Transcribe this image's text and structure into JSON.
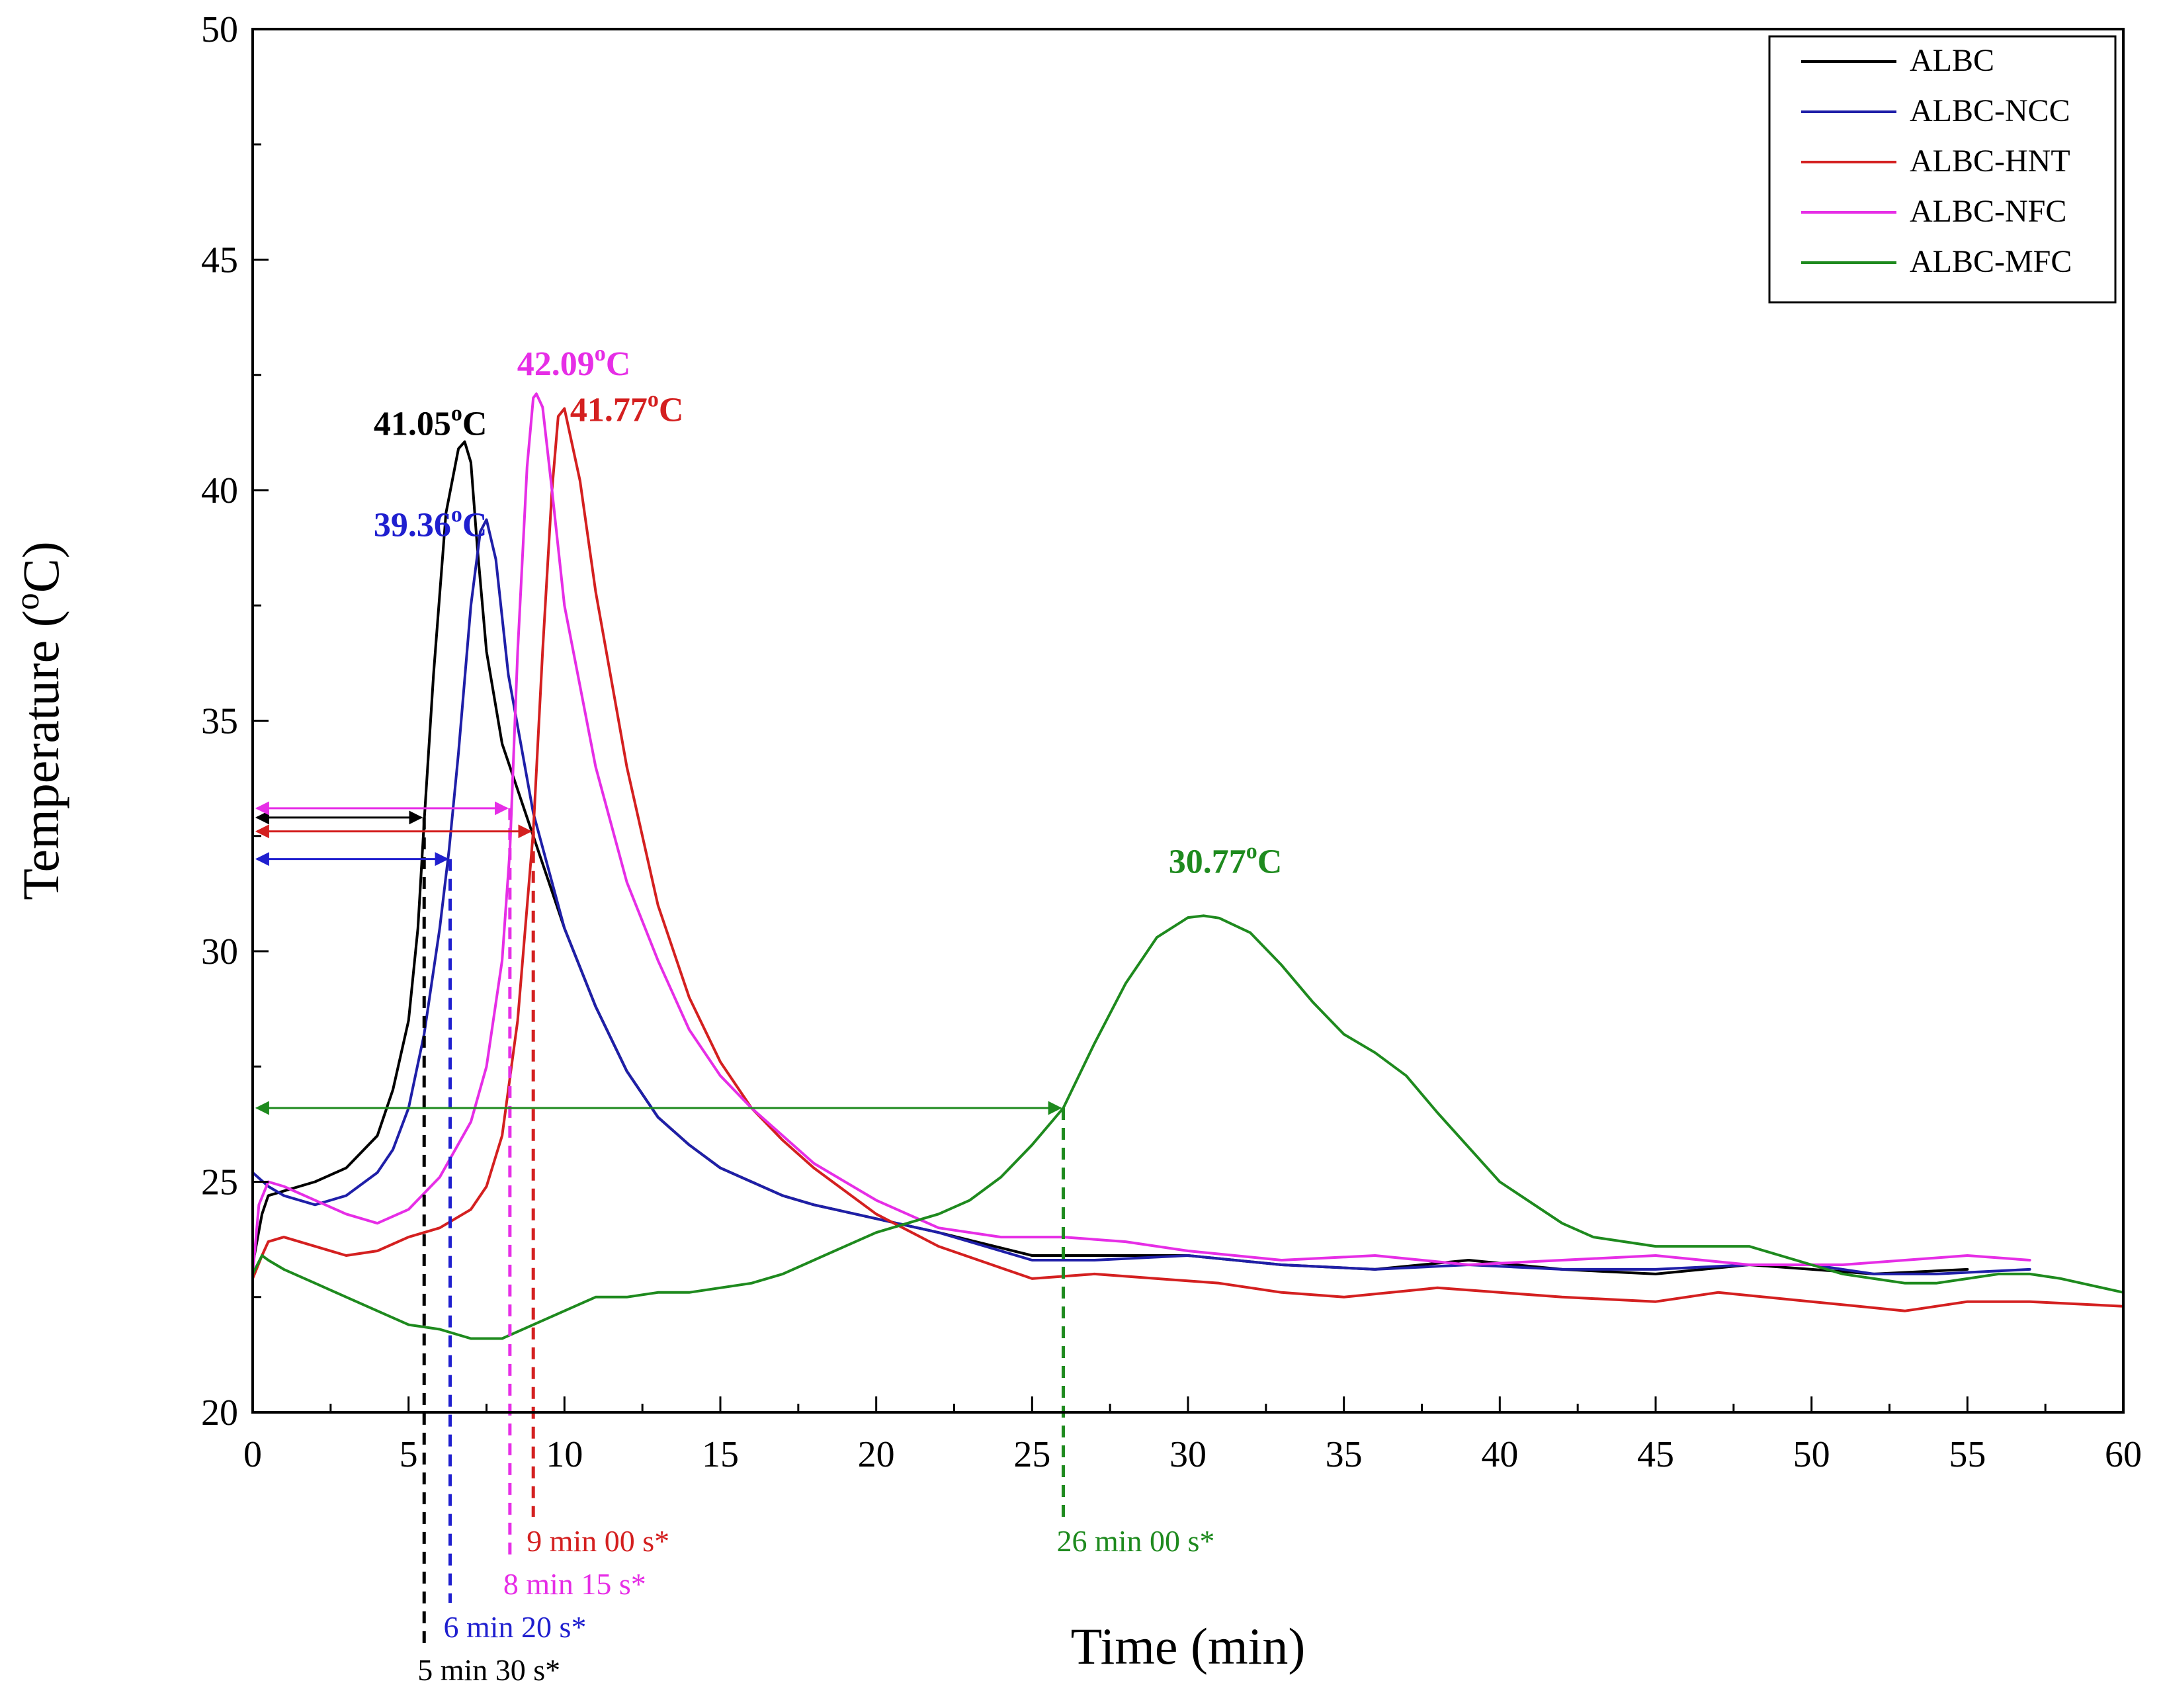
{
  "chart_data": {
    "type": "line",
    "title": "",
    "xlabel": "Time (min)",
    "ylabel_prefix": "Temperature (",
    "ylabel_sup": "o",
    "ylabel_suffix": "C)",
    "xlim": [
      0,
      60
    ],
    "ylim": [
      20,
      50
    ],
    "xticks": [
      0,
      5,
      10,
      15,
      20,
      25,
      30,
      35,
      40,
      45,
      50,
      55,
      60
    ],
    "yticks": [
      20,
      25,
      30,
      35,
      40,
      45,
      50
    ],
    "xtick_labels": [
      "0",
      "5",
      "10",
      "15",
      "20",
      "25",
      "30",
      "35",
      "40",
      "45",
      "50",
      "55",
      "60"
    ],
    "ytick_labels": [
      "20",
      "25",
      "30",
      "35",
      "40",
      "45",
      "50"
    ],
    "grid": false,
    "legend_position": "top-right",
    "series": [
      {
        "name": "ALBC",
        "color": "#000000",
        "x": [
          0,
          0.3,
          0.5,
          1,
          2,
          3,
          4,
          4.5,
          5,
          5.3,
          5.5,
          5.8,
          6.2,
          6.6,
          6.8,
          7.0,
          7.2,
          7.5,
          8,
          9,
          10,
          11,
          12,
          13,
          14,
          15,
          16,
          17,
          18,
          20,
          22,
          25,
          27,
          30,
          33,
          36,
          39,
          42,
          45,
          48,
          50,
          52,
          55
        ],
        "y": [
          23.2,
          24.3,
          24.7,
          24.8,
          25.0,
          25.3,
          26.0,
          27.0,
          28.5,
          30.5,
          32.8,
          36.0,
          39.5,
          40.9,
          41.05,
          40.6,
          38.8,
          36.5,
          34.5,
          32.5,
          30.5,
          28.8,
          27.4,
          26.4,
          25.8,
          25.3,
          25.0,
          24.7,
          24.5,
          24.2,
          23.9,
          23.4,
          23.4,
          23.4,
          23.2,
          23.1,
          23.3,
          23.1,
          23.0,
          23.2,
          23.1,
          23.0,
          23.1
        ]
      },
      {
        "name": "ALBC-NCC",
        "color": "#1f1fa8",
        "x": [
          0,
          0.5,
          1,
          2,
          3,
          4,
          4.5,
          5,
          5.5,
          6,
          6.3,
          6.6,
          7.0,
          7.3,
          7.5,
          7.8,
          8.2,
          9,
          10,
          11,
          12,
          13,
          14,
          15,
          16,
          17,
          18,
          20,
          22,
          25,
          27,
          30,
          33,
          36,
          39,
          42,
          45,
          48,
          50,
          52,
          54,
          57
        ],
        "y": [
          25.2,
          24.9,
          24.7,
          24.5,
          24.7,
          25.2,
          25.7,
          26.6,
          28.2,
          30.5,
          32.2,
          34.3,
          37.5,
          39.1,
          39.36,
          38.5,
          36.0,
          33.0,
          30.5,
          28.8,
          27.4,
          26.4,
          25.8,
          25.3,
          25.0,
          24.7,
          24.5,
          24.2,
          23.9,
          23.3,
          23.3,
          23.4,
          23.2,
          23.1,
          23.2,
          23.1,
          23.1,
          23.2,
          23.2,
          23.0,
          23.0,
          23.1
        ]
      },
      {
        "name": "ALBC-HNT",
        "color": "#d42020",
        "x": [
          0,
          0.3,
          0.5,
          1,
          2,
          3,
          4,
          5,
          6,
          7,
          7.5,
          8,
          8.5,
          9,
          9.3,
          9.6,
          9.8,
          10.0,
          10.5,
          11,
          12,
          13,
          14,
          15,
          16,
          17,
          18,
          20,
          22,
          25,
          27,
          29,
          31,
          33,
          35,
          38,
          40,
          42,
          45,
          47,
          50,
          53,
          55,
          57,
          60
        ],
        "y": [
          22.9,
          23.4,
          23.7,
          23.8,
          23.6,
          23.4,
          23.5,
          23.8,
          24.0,
          24.4,
          24.9,
          26.0,
          28.5,
          32.6,
          36.5,
          40.0,
          41.6,
          41.77,
          40.2,
          37.8,
          34.0,
          31.0,
          29.0,
          27.6,
          26.6,
          25.9,
          25.3,
          24.3,
          23.6,
          22.9,
          23.0,
          22.9,
          22.8,
          22.6,
          22.5,
          22.7,
          22.6,
          22.5,
          22.4,
          22.6,
          22.4,
          22.2,
          22.4,
          22.4,
          22.3
        ]
      },
      {
        "name": "ALBC-NFC",
        "color": "#e62ee6",
        "x": [
          0,
          0.2,
          0.5,
          1,
          2,
          3,
          4,
          5,
          6,
          7,
          7.5,
          8,
          8.25,
          8.5,
          8.8,
          9.0,
          9.1,
          9.3,
          9.6,
          10,
          11,
          12,
          13,
          14,
          15,
          16,
          18,
          20,
          22,
          24,
          26,
          28,
          30,
          33,
          36,
          39,
          42,
          45,
          48,
          51,
          55,
          57
        ],
        "y": [
          23.0,
          24.5,
          25.0,
          24.9,
          24.6,
          24.3,
          24.1,
          24.4,
          25.1,
          26.3,
          27.5,
          29.8,
          32.2,
          36.5,
          40.5,
          42.0,
          42.09,
          41.8,
          40.0,
          37.5,
          34.0,
          31.5,
          29.8,
          28.3,
          27.3,
          26.6,
          25.4,
          24.6,
          24.0,
          23.8,
          23.8,
          23.7,
          23.5,
          23.3,
          23.4,
          23.2,
          23.3,
          23.4,
          23.2,
          23.2,
          23.4,
          23.3
        ]
      },
      {
        "name": "ALBC-MFC",
        "color": "#1e8a1e",
        "x": [
          0,
          0.3,
          0.5,
          1,
          2,
          3,
          4,
          5,
          6,
          7,
          8,
          9,
          10,
          11,
          12,
          13,
          14,
          15,
          16,
          17,
          18,
          19,
          20,
          21,
          22,
          23,
          24,
          25,
          26,
          26.5,
          27,
          28,
          29,
          30,
          30.5,
          31,
          32,
          33,
          34,
          35,
          36,
          37,
          38,
          40,
          42,
          43,
          44,
          45,
          46,
          47,
          48,
          49,
          50,
          51,
          52,
          53,
          54,
          55,
          56,
          57,
          58,
          60
        ],
        "y": [
          23.0,
          23.4,
          23.3,
          23.1,
          22.8,
          22.5,
          22.2,
          21.9,
          21.8,
          21.6,
          21.6,
          21.9,
          22.2,
          22.5,
          22.5,
          22.6,
          22.6,
          22.7,
          22.8,
          23.0,
          23.3,
          23.6,
          23.9,
          24.1,
          24.3,
          24.6,
          25.1,
          25.8,
          26.6,
          27.3,
          28.0,
          29.3,
          30.3,
          30.73,
          30.77,
          30.72,
          30.4,
          29.7,
          28.9,
          28.2,
          27.8,
          27.3,
          26.5,
          25.0,
          24.1,
          23.8,
          23.7,
          23.6,
          23.6,
          23.6,
          23.6,
          23.4,
          23.2,
          23.0,
          22.9,
          22.8,
          22.8,
          22.9,
          23.0,
          23.0,
          22.9,
          22.6
        ]
      }
    ],
    "peak_annotations": [
      {
        "series": "ALBC",
        "value": "41.05",
        "unit_sup": "o",
        "unit": "C",
        "color": "#000000",
        "x": 5.7,
        "y": 41.2
      },
      {
        "series": "ALBC-NCC",
        "value": "39.36",
        "unit_sup": "o",
        "unit": "C",
        "color": "#1f1fcf",
        "x": 5.7,
        "y": 39.0
      },
      {
        "series": "ALBC-NFC",
        "value": "42.09",
        "unit_sup": "o",
        "unit": "C",
        "color": "#e62ee6",
        "x": 10.3,
        "y": 42.5
      },
      {
        "series": "ALBC-HNT",
        "value": "41.77",
        "unit_sup": "o",
        "unit": "C",
        "color": "#d42020",
        "x": 12.0,
        "y": 41.5
      },
      {
        "series": "ALBC-MFC",
        "value": "30.77",
        "unit_sup": "o",
        "unit": "C",
        "color": "#1e8a1e",
        "x": 31.2,
        "y": 31.7
      }
    ],
    "onset_annotations": [
      {
        "series": "ALBC",
        "label": "5 min 30 s*",
        "time": 5.5,
        "temp": 32.9,
        "color": "#000000"
      },
      {
        "series": "ALBC-NCC",
        "label": "6 min 20 s*",
        "time": 6.333,
        "temp": 32.0,
        "color": "#1f1fcf"
      },
      {
        "series": "ALBC-NFC",
        "label": "8 min 15 s*",
        "time": 8.25,
        "temp": 33.1,
        "color": "#e62ee6"
      },
      {
        "series": "ALBC-HNT",
        "label": "9 min 00 s*",
        "time": 9.0,
        "temp": 32.6,
        "color": "#d42020"
      },
      {
        "series": "ALBC-MFC",
        "label": "26 min 00 s*",
        "time": 26.0,
        "temp": 26.6,
        "color": "#1e8a1e"
      }
    ]
  }
}
